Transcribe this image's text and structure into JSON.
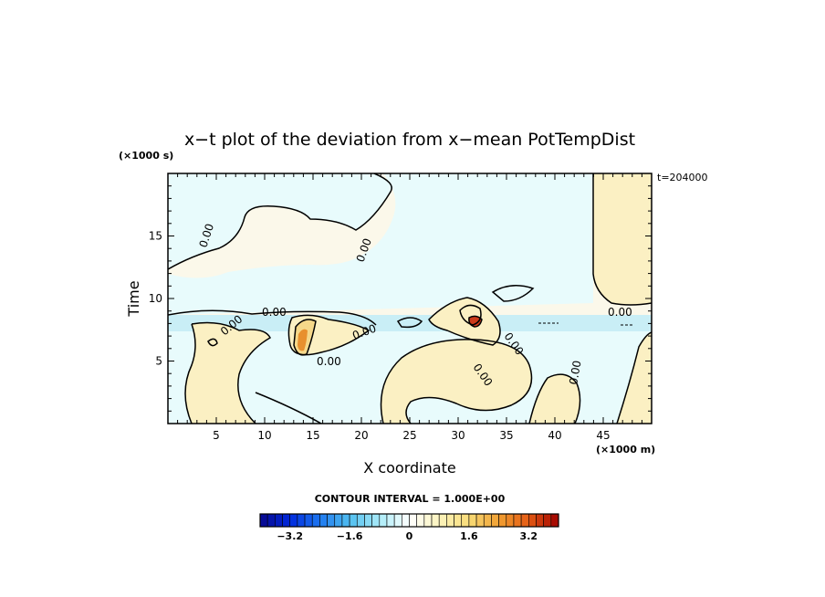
{
  "chart_data": {
    "type": "heatmap",
    "title": "x−t plot of the deviation from x−mean PotTempDist",
    "time_label": "t=204000",
    "xlabel": "X coordinate",
    "xunit": "(×1000 m)",
    "ylabel": "Time",
    "yunit": "(×1000 s)",
    "xlim": [
      0,
      50
    ],
    "ylim": [
      0,
      20
    ],
    "xticks": [
      "5",
      "10",
      "15",
      "20",
      "25",
      "30",
      "35",
      "40",
      "45"
    ],
    "yticks": [
      "5",
      "10",
      "15"
    ],
    "contour_interval": "CONTOUR INTERVAL = 1.000E+00",
    "contour_labels": [
      "0.00",
      "0.00",
      "0.00",
      "0.00",
      "0.00",
      "0.00",
      "0.00",
      "0.00",
      "0.00",
      "0.00"
    ],
    "colorbar": {
      "min": -4,
      "max": 4,
      "step": 0.2,
      "tick_values": [
        -3.2,
        -1.6,
        0,
        1.6,
        3.2
      ],
      "tick_labels": [
        "−3.2",
        "−1.6",
        "0",
        "1.6",
        "3.2"
      ]
    },
    "colors": {
      "background_positive": "#fbf8ea",
      "background_negative": "#e8fbfc",
      "band_negative": "#c9eef6",
      "warm_light": "#fbf0c3",
      "warm_mid": "#f5d88a",
      "warm_strong": "#e8902e",
      "hot": "#cc3a1a"
    }
  }
}
